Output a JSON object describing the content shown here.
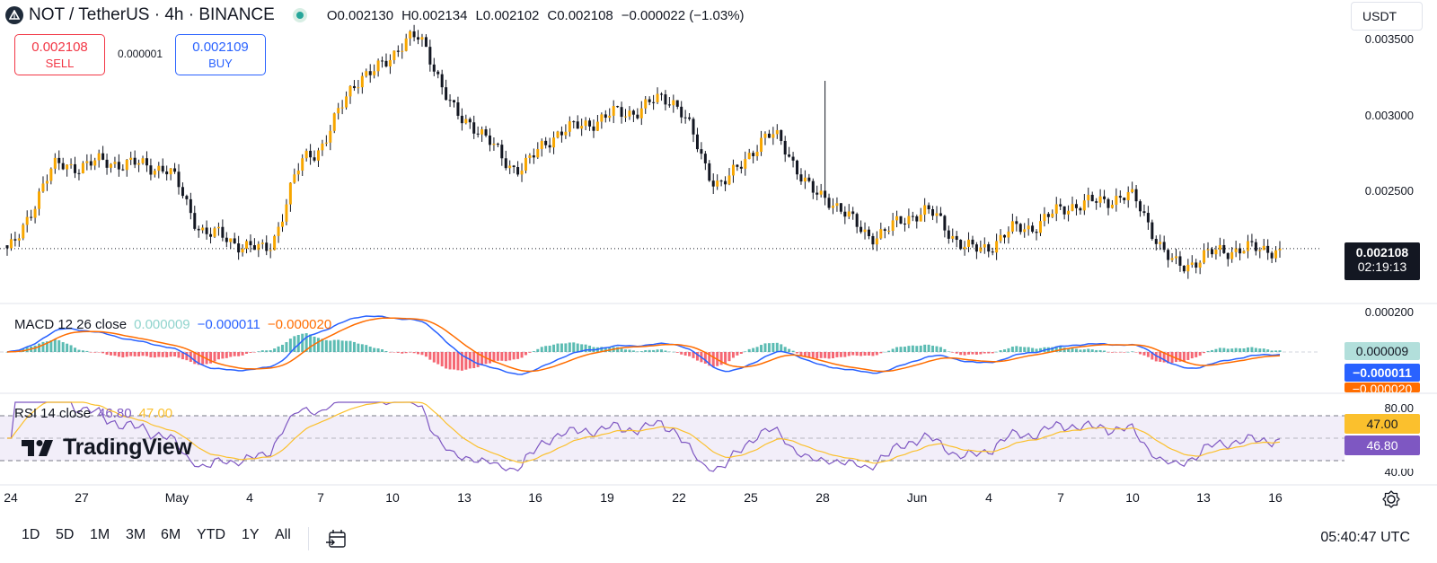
{
  "header": {
    "symbol_title": "NOT / TetherUS · 4h · BINANCE",
    "ohlc": {
      "open": "O0.002130",
      "high": "H0.002134",
      "low": "L0.002102",
      "close": "C0.002108",
      "change": "−0.000022 (−1.03%)"
    }
  },
  "currency_selector": {
    "value": "USDT"
  },
  "trade": {
    "sell_price": "0.002108",
    "sell_label": "SELL",
    "spread": "0.000001",
    "buy_price": "0.002109",
    "buy_label": "BUY"
  },
  "price_axis": {
    "ticks": [
      "0.003500",
      "0.003000",
      "0.002500"
    ],
    "last_price": "0.002108",
    "countdown": "02:19:13"
  },
  "macd": {
    "label": "MACD 12 26 close",
    "histogram": "0.000009",
    "macd": "−0.000011",
    "signal": "−0.000020",
    "axis_tick": "0.000200",
    "colors": {
      "macd": "#2962ff",
      "signal": "#ff6d00",
      "hist_up": "#26a69a",
      "hist_down": "#f23645"
    }
  },
  "rsi": {
    "label": "RSI 14 close",
    "value": "46.80",
    "ma_value": "47.00",
    "axis_tick_top": "80.00",
    "axis_tick_bottom": "40.00",
    "colors": {
      "rsi": "#7e57c2",
      "ma": "#fbc02d"
    }
  },
  "time_axis": [
    "24",
    "27",
    "May",
    "4",
    "7",
    "10",
    "13",
    "16",
    "19",
    "22",
    "25",
    "28",
    "Jun",
    "4",
    "7",
    "10",
    "13",
    "16"
  ],
  "logo_text": "TradingView",
  "bottom_bar": {
    "ranges": [
      "1D",
      "5D",
      "1M",
      "3M",
      "6M",
      "YTD",
      "1Y",
      "All"
    ],
    "clock": "05:40:47 UTC"
  },
  "chart_data": {
    "type": "candlestick",
    "symbol": "NOTUSDT",
    "interval": "4h",
    "ylim": [
      0.002,
      0.0036
    ],
    "close_anchors": [
      {
        "x": "Apr 24",
        "y": 0.00211
      },
      {
        "x": "Apr 27",
        "y": 0.00265
      },
      {
        "x": "Apr 30",
        "y": 0.00268
      },
      {
        "x": "May 2",
        "y": 0.00265
      },
      {
        "x": "May 4",
        "y": 0.0022
      },
      {
        "x": "May 7",
        "y": 0.0021
      },
      {
        "x": "May 10",
        "y": 0.00275
      },
      {
        "x": "May 13",
        "y": 0.00325
      },
      {
        "x": "May 14",
        "y": 0.0035
      },
      {
        "x": "May 16",
        "y": 0.00295
      },
      {
        "x": "May 18",
        "y": 0.00265
      },
      {
        "x": "May 19",
        "y": 0.0029
      },
      {
        "x": "May 22",
        "y": 0.003
      },
      {
        "x": "May 23",
        "y": 0.0031
      },
      {
        "x": "May 25",
        "y": 0.00255
      },
      {
        "x": "May 28",
        "y": 0.00285
      },
      {
        "x": "May 30",
        "y": 0.00245
      },
      {
        "x": "Jun 1",
        "y": 0.0022
      },
      {
        "x": "Jun 4",
        "y": 0.00235
      },
      {
        "x": "Jun 6",
        "y": 0.0021
      },
      {
        "x": "Jun 8",
        "y": 0.00225
      },
      {
        "x": "Jun 10",
        "y": 0.0024
      },
      {
        "x": "Jun 11",
        "y": 0.00245
      },
      {
        "x": "Jun 13",
        "y": 0.002
      },
      {
        "x": "Jun 15",
        "y": 0.0021
      },
      {
        "x": "Jun 17",
        "y": 0.002108
      }
    ],
    "spike_high": 0.00322,
    "last_close": 0.002108
  }
}
